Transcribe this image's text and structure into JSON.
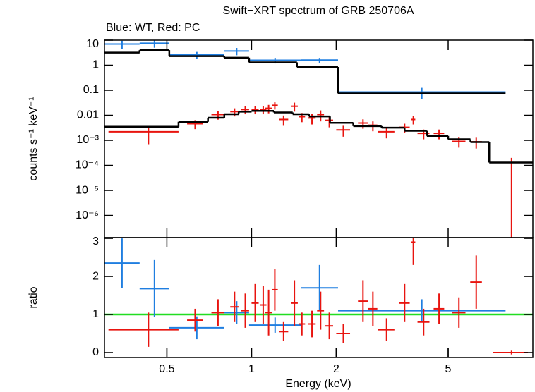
{
  "chart_data": [
    {
      "type": "errorbar",
      "title": "Swift−XRT spectrum of GRB 250706A",
      "subtitle": "Blue: WT, Red: PC",
      "ylabel": "counts s⁻¹ keV⁻¹",
      "log_x": true,
      "log_y": true,
      "xlim": [
        0.3,
        10
      ],
      "ylim": [
        1.3e-07,
        10
      ],
      "yticks": [
        10,
        1,
        0.1,
        0.01,
        {
          "value": 0.001,
          "label": "10⁻³"
        },
        {
          "value": 0.0001,
          "label": "10⁻⁴"
        },
        {
          "value": 1e-05,
          "label": "10⁻⁵"
        },
        {
          "value": 1e-06,
          "label": "10⁻⁶"
        }
      ],
      "series": [
        {
          "color": "#1f7ee0",
          "bins": [
            0.3,
            0.4,
            0.51,
            0.8,
            0.98,
            1.5,
            2.03,
            8.0
          ],
          "values": [
            7,
            7.5,
            2.6,
            3.7,
            1.57,
            1.6,
            0.085
          ],
          "yerr": [
            2.5,
            2.5,
            0.8,
            1.2,
            0.4,
            0.35,
            0.04
          ]
        },
        {
          "color": "#e8140f",
          "x": [
            0.43,
            0.63,
            0.76,
            0.87,
            0.95,
            1.03,
            1.1,
            1.15,
            1.21,
            1.3,
            1.42,
            1.51,
            1.64,
            1.76,
            1.89,
            2.12,
            2.49,
            2.7,
            3.02,
            3.5,
            3.76,
            4.09,
            4.64,
            5.46,
            6.29,
            8.4
          ],
          "xerr": [
            0.12,
            0.04,
            0.04,
            0.03,
            0.03,
            0.03,
            0.03,
            0.03,
            0.03,
            0.05,
            0.04,
            0.04,
            0.05,
            0.05,
            0.06,
            0.12,
            0.1,
            0.1,
            0.2,
            0.15,
            0.06,
            0.2,
            0.2,
            0.3,
            0.3,
            1.2
          ],
          "values": [
            0.0022,
            0.0046,
            0.0107,
            0.014,
            0.017,
            0.017,
            0.017,
            0.019,
            0.025,
            0.0068,
            0.023,
            0.0088,
            0.0078,
            0.0107,
            0.0063,
            0.0026,
            0.0049,
            0.004,
            0.0022,
            0.0033,
            0.0068,
            0.0019,
            0.0019,
            0.00091,
            0.00087,
            0
          ],
          "yerr": [
            0.0015,
            0.0018,
            0.004,
            0.005,
            0.006,
            0.006,
            0.006,
            0.007,
            0.008,
            0.003,
            0.009,
            0.0035,
            0.0035,
            0.005,
            0.003,
            0.0012,
            0.002,
            0.0017,
            0.001,
            0.0013,
            0.0025,
            0.0008,
            0.0008,
            0.0004,
            0.0004,
            0.0002
          ]
        },
        {
          "color": "#000000",
          "kind": "step",
          "bins": [
            0.3,
            0.4,
            0.51,
            0.8,
            0.98,
            1.45,
            2.03,
            8.0
          ],
          "values": [
            3.2,
            4,
            2.3,
            2.0,
            1.3,
            0.85,
            0.075
          ]
        },
        {
          "color": "#000000",
          "kind": "step",
          "bins": [
            0.3,
            0.55,
            0.7,
            0.8,
            0.9,
            1.0,
            1.2,
            1.4,
            1.6,
            1.9,
            2.3,
            2.9,
            3.5,
            4.2,
            5.0,
            6.0,
            7.0,
            10
          ],
          "values": [
            0.0035,
            0.0055,
            0.008,
            0.011,
            0.014,
            0.015,
            0.013,
            0.011,
            0.009,
            0.005,
            0.0037,
            0.0032,
            0.0024,
            0.0015,
            0.0011,
            0.00085,
            0.00013
          ]
        }
      ]
    },
    {
      "type": "errorbar",
      "ylabel": "ratio",
      "xlabel": "Energy (keV)",
      "log_x": true,
      "log_y": false,
      "xlim": [
        0.3,
        10
      ],
      "ylim": [
        -0.13,
        3.02
      ],
      "yticks": [
        0,
        1,
        2,
        3
      ],
      "xticks": [
        0.5,
        1,
        2,
        5
      ],
      "ref_line": {
        "value": 1,
        "color": "#22dd22"
      },
      "series": [
        {
          "color": "#1f7ee0",
          "bins": [
            0.3,
            0.4,
            0.51,
            0.8,
            0.98,
            1.5,
            2.03,
            8.0
          ],
          "values": [
            2.35,
            1.68,
            0.65,
            1.05,
            0.72,
            1.7,
            1.1
          ],
          "yerr": [
            0.65,
            0.75,
            0.3,
            0.3,
            0.2,
            0.6,
            0.3
          ]
        },
        {
          "color": "#e8140f",
          "x": [
            0.43,
            0.63,
            0.76,
            0.87,
            0.95,
            1.03,
            1.1,
            1.15,
            1.21,
            1.3,
            1.42,
            1.51,
            1.64,
            1.76,
            1.89,
            2.12,
            2.49,
            2.7,
            3.02,
            3.5,
            3.76,
            4.09,
            4.64,
            5.46,
            6.29,
            8.4
          ],
          "xerr": [
            0.12,
            0.04,
            0.04,
            0.03,
            0.03,
            0.03,
            0.03,
            0.03,
            0.03,
            0.05,
            0.04,
            0.04,
            0.05,
            0.05,
            0.06,
            0.12,
            0.1,
            0.1,
            0.2,
            0.15,
            0.06,
            0.2,
            0.2,
            0.3,
            0.3,
            1.2
          ],
          "values": [
            0.6,
            0.85,
            1.05,
            1.2,
            1.1,
            1.3,
            1.25,
            1.05,
            1.65,
            0.55,
            1.3,
            0.75,
            0.75,
            1.1,
            0.7,
            0.5,
            1.35,
            1.15,
            0.6,
            1.3,
            2.9,
            0.8,
            1.15,
            1.05,
            1.85,
            0
          ],
          "yerr": [
            0.45,
            0.3,
            0.35,
            0.4,
            0.45,
            0.5,
            0.5,
            0.6,
            0.55,
            0.25,
            0.6,
            0.3,
            0.35,
            0.5,
            0.35,
            0.25,
            0.55,
            0.45,
            0.3,
            0.5,
            0.6,
            0.35,
            0.4,
            0.4,
            0.7,
            0.05
          ]
        }
      ]
    }
  ]
}
